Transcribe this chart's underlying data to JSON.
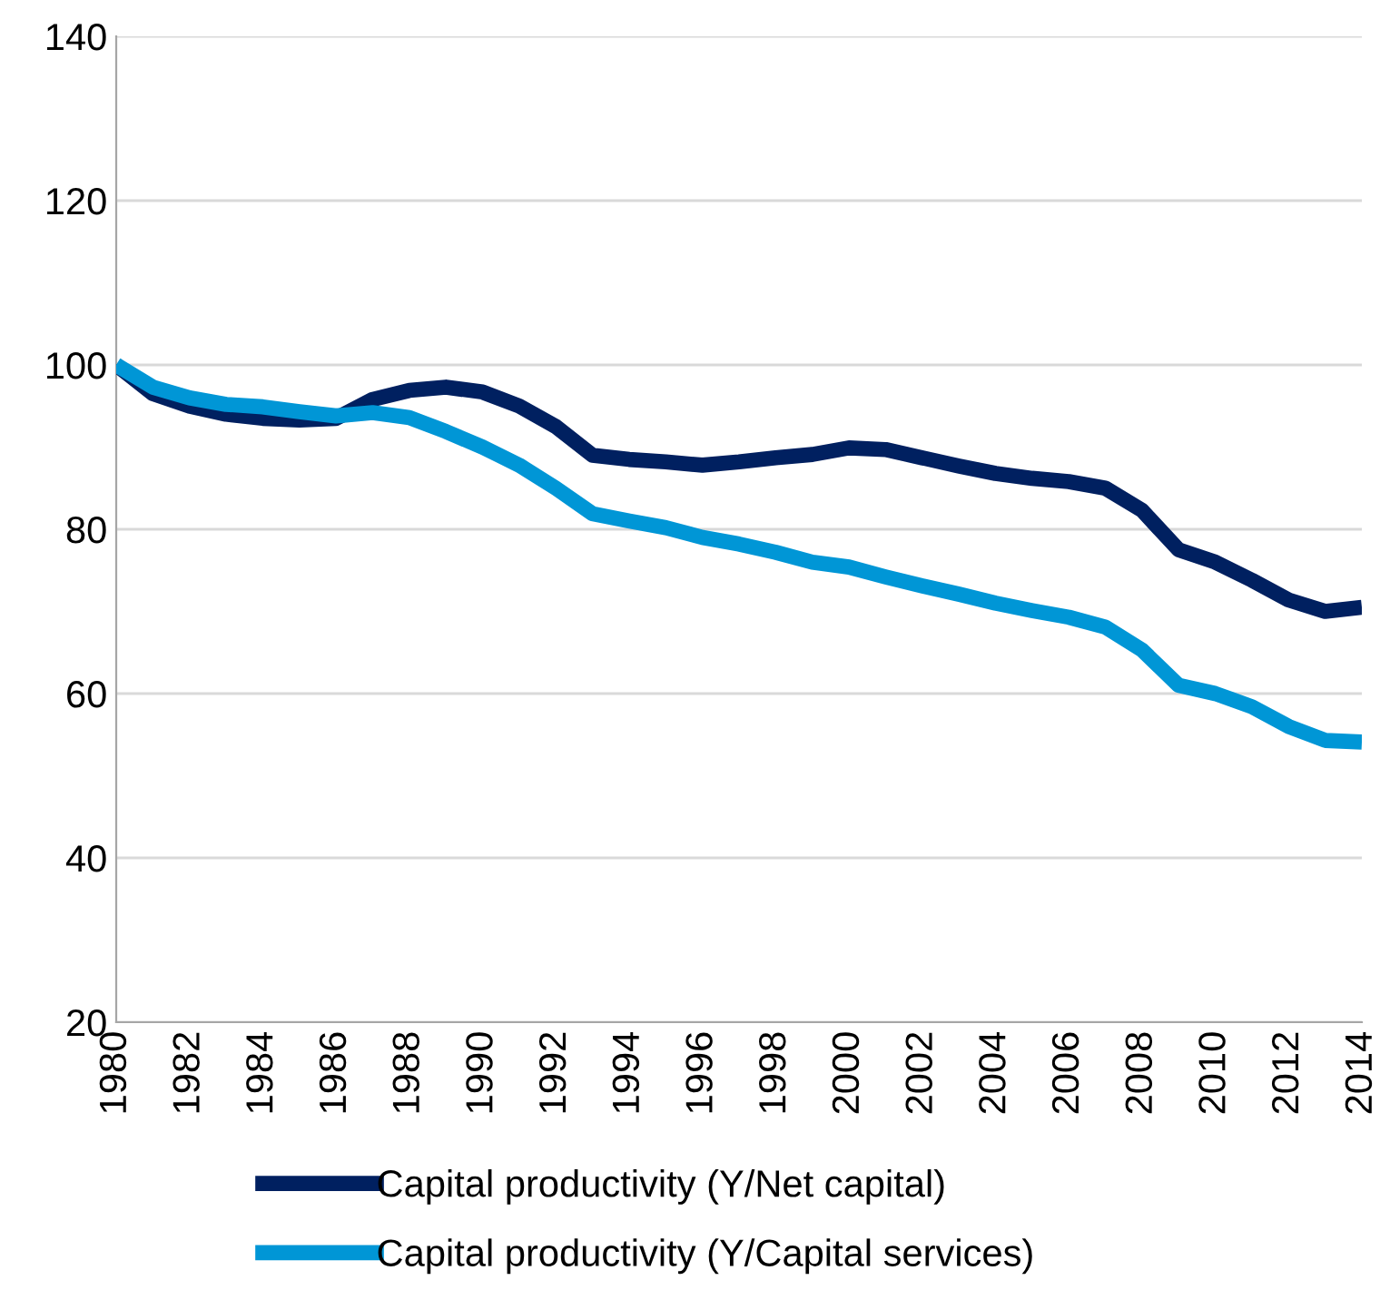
{
  "chart_data": {
    "type": "line",
    "x": [
      1980,
      1981,
      1982,
      1983,
      1984,
      1985,
      1986,
      1987,
      1988,
      1989,
      1990,
      1991,
      1992,
      1993,
      1994,
      1995,
      1996,
      1997,
      1998,
      1999,
      2000,
      2001,
      2002,
      2003,
      2004,
      2005,
      2006,
      2007,
      2008,
      2009,
      2010,
      2011,
      2012,
      2013,
      2014
    ],
    "series": [
      {
        "name": "Capital productivity (Y/Net capital)",
        "color": "#002060",
        "values": [
          100,
          96.5,
          95,
          94,
          93.5,
          93.3,
          93.5,
          95.8,
          96.9,
          97.3,
          96.7,
          95,
          92.5,
          89,
          88.5,
          88.2,
          87.8,
          88.2,
          88.7,
          89.1,
          89.9,
          89.7,
          88.7,
          87.7,
          86.8,
          86.2,
          85.8,
          85,
          82.3,
          77.5,
          76,
          73.8,
          71.4,
          70,
          70.5
        ]
      },
      {
        "name": "Capital productivity (Y/Capital services)",
        "color": "#0096d6",
        "values": [
          100,
          97.3,
          96,
          95.2,
          94.9,
          94.3,
          93.8,
          94.2,
          93.6,
          91.9,
          90,
          87.8,
          85,
          81.9,
          81,
          80.2,
          79,
          78.2,
          77.2,
          76,
          75.4,
          74.2,
          73.1,
          72.1,
          71,
          70.1,
          69.3,
          68.1,
          65.3,
          61,
          60,
          58.4,
          56,
          54.3,
          54.1
        ]
      }
    ],
    "xlim": [
      1980,
      2014
    ],
    "xticks": [
      1980,
      1982,
      1984,
      1986,
      1988,
      1990,
      1992,
      1994,
      1996,
      1998,
      2000,
      2002,
      2004,
      2006,
      2008,
      2010,
      2012,
      2014
    ],
    "ylim": [
      20,
      140
    ],
    "yticks": [
      20,
      40,
      60,
      80,
      100,
      120,
      140
    ],
    "grid": "y",
    "legend": "bottom",
    "line_style": "solid",
    "marker": "none"
  }
}
